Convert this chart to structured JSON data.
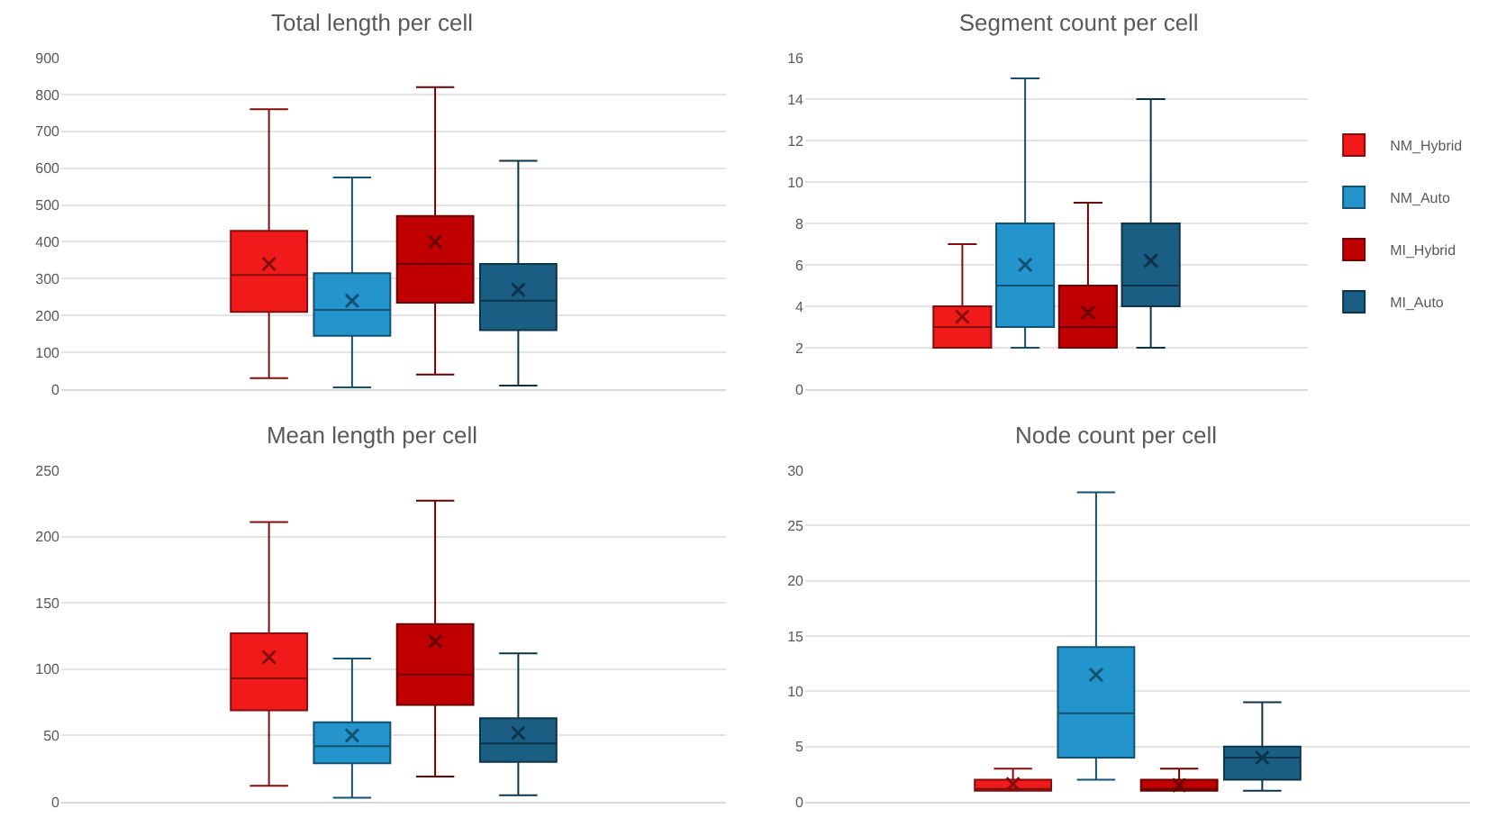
{
  "chart_data": [
    {
      "type": "box",
      "title": "Total length per cell",
      "categories": [
        null
      ],
      "ylim": [
        0,
        900
      ],
      "yticks": [
        0,
        100,
        200,
        300,
        400,
        500,
        600,
        700,
        800,
        900
      ],
      "grid": "y",
      "series": [
        {
          "color": "#f01a1a",
          "boxes": [
            {
              "low": 30,
              "q1": 210,
              "median": 310,
              "q3": 430,
              "high": 760,
              "mean": 340
            }
          ]
        },
        {
          "color": "#2394cc",
          "boxes": [
            {
              "low": 5,
              "q1": 145,
              "median": 215,
              "q3": 315,
              "high": 575,
              "mean": 240
            }
          ]
        },
        {
          "color": "#c00000",
          "boxes": [
            {
              "low": 40,
              "q1": 235,
              "median": 340,
              "q3": 470,
              "high": 820,
              "mean": 400
            }
          ]
        },
        {
          "color": "#1a5e84",
          "boxes": [
            {
              "low": 10,
              "q1": 160,
              "median": 240,
              "q3": 340,
              "high": 620,
              "mean": 270
            }
          ]
        }
      ]
    },
    {
      "type": "box",
      "title": "Segment count per cell",
      "categories": [
        null
      ],
      "ylim": [
        0,
        16
      ],
      "yticks": [
        0,
        2,
        4,
        6,
        8,
        10,
        12,
        14,
        16
      ],
      "grid": "y",
      "legend": "right",
      "series": [
        {
          "name": "NM_Hybrid",
          "color": "#f01a1a",
          "boxes": [
            {
              "low": 2,
              "q1": 2,
              "median": 3,
              "q3": 4,
              "high": 7,
              "mean": 3.5
            }
          ]
        },
        {
          "name": "NM_Auto",
          "color": "#2394cc",
          "boxes": [
            {
              "low": 2,
              "q1": 3,
              "median": 5,
              "q3": 8,
              "high": 15,
              "mean": 6
            }
          ]
        },
        {
          "name": "MI_Hybrid",
          "color": "#c00000",
          "boxes": [
            {
              "low": 2,
              "q1": 2,
              "median": 3,
              "q3": 5,
              "high": 9,
              "mean": 3.7
            }
          ]
        },
        {
          "name": "MI_Auto",
          "color": "#1a5e84",
          "boxes": [
            {
              "low": 2,
              "q1": 4,
              "median": 5,
              "q3": 8,
              "high": 14,
              "mean": 6.2
            }
          ]
        }
      ]
    },
    {
      "type": "box",
      "title": "Mean length per cell",
      "categories": [
        null
      ],
      "ylim": [
        0,
        250
      ],
      "yticks": [
        0,
        50,
        100,
        150,
        200,
        250
      ],
      "grid": "y",
      "series": [
        {
          "color": "#f01a1a",
          "boxes": [
            {
              "low": 12,
              "q1": 69,
              "median": 93,
              "q3": 127,
              "high": 211,
              "mean": 109
            }
          ]
        },
        {
          "color": "#2394cc",
          "boxes": [
            {
              "low": 3,
              "q1": 29,
              "median": 42,
              "q3": 60,
              "high": 108,
              "mean": 50
            }
          ]
        },
        {
          "color": "#c00000",
          "boxes": [
            {
              "low": 19,
              "q1": 73,
              "median": 96,
              "q3": 134,
              "high": 227,
              "mean": 121
            }
          ]
        },
        {
          "color": "#1a5e84",
          "boxes": [
            {
              "low": 5,
              "q1": 30,
              "median": 44,
              "q3": 63,
              "high": 112,
              "mean": 52
            }
          ]
        }
      ]
    },
    {
      "type": "box",
      "title": "Node count per cell",
      "categories": [
        null
      ],
      "ylim": [
        0,
        30
      ],
      "yticks": [
        0,
        5,
        10,
        15,
        20,
        25,
        30
      ],
      "grid": "y",
      "series": [
        {
          "color": "#f01a1a",
          "boxes": [
            {
              "low": 1,
              "q1": 1,
              "median": 1,
              "q3": 2,
              "high": 3,
              "mean": 1.6
            }
          ]
        },
        {
          "color": "#2394cc",
          "boxes": [
            {
              "low": 2,
              "q1": 4,
              "median": 8,
              "q3": 14,
              "high": 28,
              "mean": 11.5
            }
          ]
        },
        {
          "color": "#c00000",
          "boxes": [
            {
              "low": 1,
              "q1": 1,
              "median": 1,
              "q3": 2,
              "high": 3,
              "mean": 1.5
            }
          ]
        },
        {
          "color": "#1a5e84",
          "boxes": [
            {
              "low": 1,
              "q1": 2,
              "median": 4,
              "q3": 5,
              "high": 9,
              "mean": 4
            }
          ]
        }
      ]
    }
  ]
}
